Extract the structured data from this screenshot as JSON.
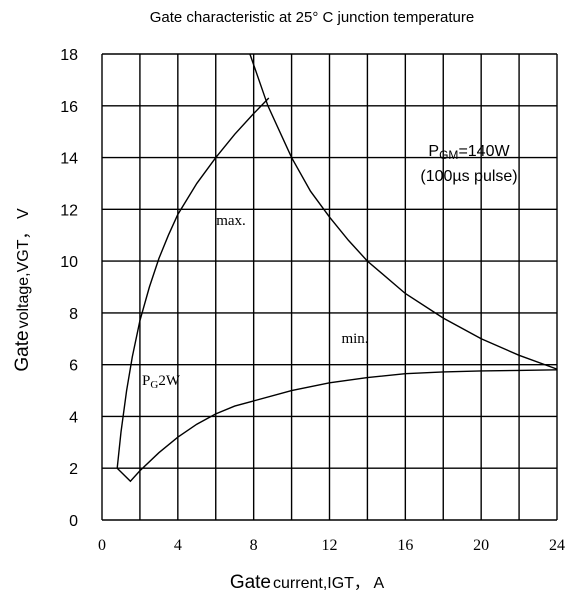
{
  "chart_data": {
    "type": "line",
    "title": "Gate characteristic at 25° C junction temperature",
    "xlabel": {
      "word": "Gate",
      "rest": "current,IGT， A"
    },
    "ylabel": {
      "word": "Gate",
      "rest": "voltage,VGT， V"
    },
    "xlim": [
      0,
      24
    ],
    "ylim": [
      0,
      18
    ],
    "x_ticks": [
      "0",
      "4",
      "8",
      "12",
      "16",
      "20",
      "24"
    ],
    "y_ticks": [
      "0",
      "2",
      "4",
      "6",
      "8",
      "10",
      "12",
      "14",
      "16",
      "18"
    ],
    "grid": true,
    "annotations": {
      "pgm_line1": {
        "main": "P",
        "sub": "GM",
        "rest": "=140W"
      },
      "pgm_line2": "(100µs pulse)",
      "max": "max.",
      "min": "min.",
      "pg": {
        "main": "P",
        "sub": "G",
        "rest": "2W"
      }
    },
    "series": [
      {
        "id": "max",
        "x": [
          0.8,
          1.0,
          1.3,
          1.6,
          2.0,
          2.5,
          3.0,
          3.5,
          4.0,
          5.0,
          6.0,
          7.0,
          8.0,
          8.8
        ],
        "y": [
          2.0,
          3.4,
          5.0,
          6.3,
          7.7,
          9.0,
          10.1,
          11.0,
          11.8,
          13.0,
          14.0,
          14.9,
          15.7,
          16.3
        ]
      },
      {
        "id": "min",
        "x": [
          0.8,
          1.5,
          2.0,
          3.0,
          4.0,
          5.0,
          6.0,
          7.0,
          8.0,
          10.0,
          12.0,
          14.0,
          16.0,
          18.0,
          20.0,
          22.0,
          24.0
        ],
        "y": [
          2.0,
          1.5,
          1.9,
          2.6,
          3.2,
          3.7,
          4.1,
          4.4,
          4.6,
          5.0,
          5.3,
          5.5,
          5.65,
          5.72,
          5.76,
          5.78,
          5.8
        ]
      },
      {
        "id": "pgm",
        "x": [
          7.8,
          8.75,
          10.0,
          11.0,
          12.0,
          13.0,
          14.0,
          16.0,
          18.0,
          20.0,
          22.0,
          24.0
        ],
        "y": [
          18.0,
          16.0,
          14.0,
          12.7,
          11.7,
          10.8,
          10.0,
          8.75,
          7.8,
          7.0,
          6.36,
          5.83
        ]
      }
    ]
  }
}
